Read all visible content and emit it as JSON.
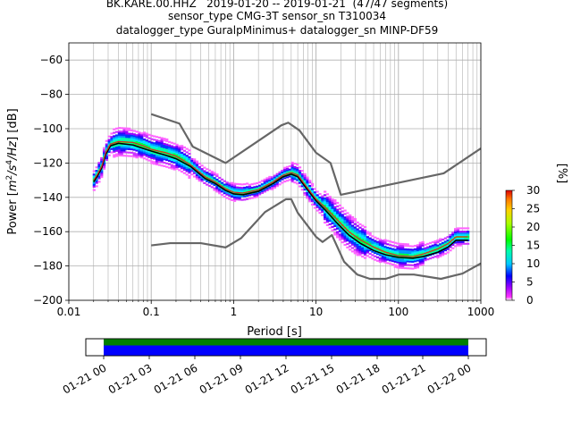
{
  "chart_data": {
    "type": "heatmap",
    "title_lines": [
      "BK.KARE.00.HHZ   2019-01-20 -- 2019-01-21  (47/47 segments)",
      "sensor_type CMG-3T sensor_sn T310034",
      "datalogger_type GuralpMinimus+ datalogger_sn MINP-DF59"
    ],
    "xlabel": "Period [s]",
    "ylabel_parts": [
      "Power [",
      "m",
      "2",
      "/s",
      "4",
      "/Hz",
      "] [dB]"
    ],
    "x_scale": "log",
    "xlim": [
      0.01,
      1000
    ],
    "ylim": [
      -200,
      -50
    ],
    "x_ticks": [
      {
        "value": 0.01,
        "label": "0.01"
      },
      {
        "value": 0.1,
        "label": "0.1"
      },
      {
        "value": 1,
        "label": "1"
      },
      {
        "value": 10,
        "label": "10"
      },
      {
        "value": 100,
        "label": "100"
      },
      {
        "value": 1000,
        "label": "1000"
      }
    ],
    "y_ticks": [
      {
        "value": -60,
        "label": "−60"
      },
      {
        "value": -80,
        "label": "−80"
      },
      {
        "value": -100,
        "label": "−100"
      },
      {
        "value": -120,
        "label": "−120"
      },
      {
        "value": -140,
        "label": "−140"
      },
      {
        "value": -160,
        "label": "−160"
      },
      {
        "value": -180,
        "label": "−180"
      },
      {
        "value": -200,
        "label": "−200"
      }
    ],
    "grid": true,
    "colorbar": {
      "label": "[%]",
      "range": [
        0,
        30
      ],
      "ticks": [
        "0",
        "5",
        "10",
        "15",
        "20",
        "25",
        "30"
      ]
    },
    "noise_models": [
      {
        "name": "high",
        "points": [
          [
            0.1,
            -91.5
          ],
          [
            0.22,
            -97.0
          ],
          [
            0.32,
            -110.5
          ],
          [
            0.8,
            -120.0
          ],
          [
            3.8,
            -98.0
          ],
          [
            4.6,
            -96.5
          ],
          [
            6.3,
            -101.0
          ],
          [
            10.0,
            -114.0
          ],
          [
            15.0,
            -120.0
          ],
          [
            20.0,
            -138.5
          ],
          [
            354.0,
            -126.0
          ],
          [
            1000.0,
            -111.5
          ]
        ]
      },
      {
        "name": "low",
        "points": [
          [
            0.1,
            -168.0
          ],
          [
            0.17,
            -166.7
          ],
          [
            0.4,
            -166.7
          ],
          [
            0.8,
            -169.2
          ],
          [
            1.24,
            -163.7
          ],
          [
            2.4,
            -148.6
          ],
          [
            4.3,
            -141.1
          ],
          [
            5.0,
            -141.1
          ],
          [
            6.0,
            -149.0
          ],
          [
            10.0,
            -163.0
          ],
          [
            12.0,
            -166.0
          ],
          [
            15.6,
            -162.0
          ],
          [
            21.9,
            -177.5
          ],
          [
            31.6,
            -185.0
          ],
          [
            45.0,
            -187.5
          ],
          [
            70.0,
            -187.5
          ],
          [
            101.0,
            -185.0
          ],
          [
            154.0,
            -185.0
          ],
          [
            328.0,
            -187.5
          ],
          [
            600.0,
            -184.4
          ],
          [
            1000.0,
            -178.5
          ]
        ]
      }
    ],
    "mode_curve": [
      [
        0.02,
        -130
      ],
      [
        0.022,
        -127
      ],
      [
        0.025,
        -122
      ],
      [
        0.028,
        -114
      ],
      [
        0.032,
        -109
      ],
      [
        0.04,
        -107.5
      ],
      [
        0.06,
        -108
      ],
      [
        0.08,
        -110
      ],
      [
        0.1,
        -112
      ],
      [
        0.15,
        -114
      ],
      [
        0.2,
        -116
      ],
      [
        0.3,
        -121
      ],
      [
        0.45,
        -128
      ],
      [
        0.6,
        -131
      ],
      [
        0.8,
        -135
      ],
      [
        1.0,
        -137
      ],
      [
        1.3,
        -137.5
      ],
      [
        2.0,
        -135.5
      ],
      [
        3.0,
        -131
      ],
      [
        4.0,
        -127
      ],
      [
        5.0,
        -125.5
      ],
      [
        6.0,
        -127
      ],
      [
        8.0,
        -135
      ],
      [
        10.0,
        -141
      ],
      [
        13.0,
        -146
      ],
      [
        18.0,
        -153
      ],
      [
        25.0,
        -160
      ],
      [
        35.0,
        -165
      ],
      [
        50.0,
        -169
      ],
      [
        70.0,
        -172
      ],
      [
        100.0,
        -174
      ],
      [
        150.0,
        -174.5
      ],
      [
        200.0,
        -173
      ],
      [
        300.0,
        -170
      ],
      [
        400.0,
        -167
      ],
      [
        500.0,
        -163
      ],
      [
        700.0,
        -163
      ]
    ],
    "mean_curve": [
      [
        0.02,
        -131
      ],
      [
        0.022,
        -128
      ],
      [
        0.025,
        -123
      ],
      [
        0.028,
        -115
      ],
      [
        0.032,
        -110
      ],
      [
        0.04,
        -108.5
      ],
      [
        0.06,
        -109.5
      ],
      [
        0.08,
        -111.5
      ],
      [
        0.1,
        -113
      ],
      [
        0.15,
        -115.5
      ],
      [
        0.2,
        -117.5
      ],
      [
        0.3,
        -122
      ],
      [
        0.45,
        -129
      ],
      [
        0.6,
        -132
      ],
      [
        0.8,
        -136
      ],
      [
        1.0,
        -138
      ],
      [
        1.3,
        -138.5
      ],
      [
        2.0,
        -136.5
      ],
      [
        3.0,
        -132
      ],
      [
        4.0,
        -128
      ],
      [
        5.0,
        -126.5
      ],
      [
        6.0,
        -128
      ],
      [
        8.0,
        -136
      ],
      [
        10.0,
        -142
      ],
      [
        13.0,
        -147.5
      ],
      [
        18.0,
        -155
      ],
      [
        25.0,
        -162
      ],
      [
        35.0,
        -167
      ],
      [
        50.0,
        -171
      ],
      [
        70.0,
        -173.5
      ],
      [
        100.0,
        -175
      ],
      [
        150.0,
        -175.5
      ],
      [
        200.0,
        -174.5
      ],
      [
        300.0,
        -172
      ],
      [
        400.0,
        -169
      ],
      [
        500.0,
        -165
      ],
      [
        700.0,
        -165
      ]
    ],
    "timeline": {
      "tick_labels": [
        "01-21 00",
        "01-21 03",
        "01-21 06",
        "01-21 09",
        "01-21 12",
        "01-21 15",
        "01-21 18",
        "01-21 21",
        "01-22 00"
      ],
      "coverage_colors": [
        "#008000",
        "#0000ff"
      ]
    }
  }
}
